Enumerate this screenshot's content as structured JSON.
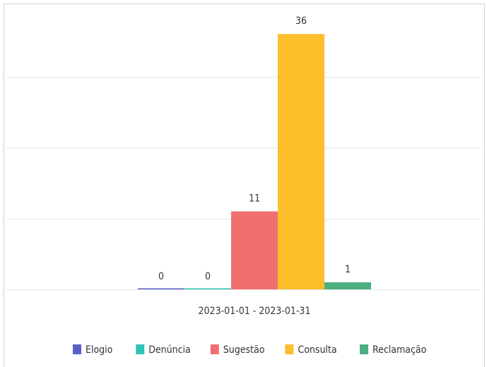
{
  "chart_data": {
    "type": "bar",
    "categories": [
      "2023-01-01 - 2023-01-31"
    ],
    "series": [
      {
        "name": "Elogio",
        "color": "#5b5fc7",
        "values": [
          0
        ]
      },
      {
        "name": "Denúncia",
        "color": "#2ec4b6",
        "values": [
          0
        ]
      },
      {
        "name": "Sugestão",
        "color": "#f07070",
        "values": [
          11
        ]
      },
      {
        "name": "Consulta",
        "color": "#fbbf2c",
        "values": [
          36
        ]
      },
      {
        "name": "Reclamação",
        "color": "#4caf82",
        "values": [
          1
        ]
      }
    ],
    "ylim": [
      0,
      40
    ],
    "yticks": [
      0,
      10,
      20,
      30
    ],
    "grid": true,
    "legend": "bottom"
  }
}
